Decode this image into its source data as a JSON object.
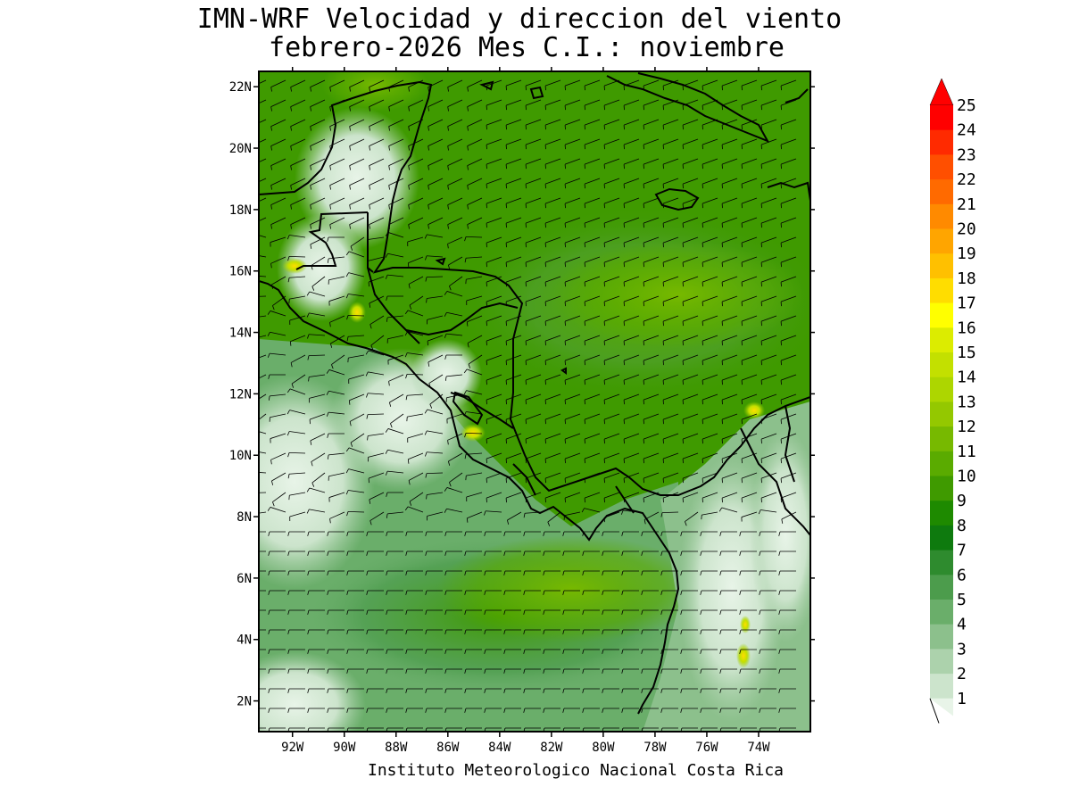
{
  "title_line1": "IMN-WRF Velocidad y direccion del viento",
  "title_line2": "febrero-2026 Mes C.I.: noviembre",
  "footer": "Instituto Meteorologico Nacional Costa Rica",
  "map": {
    "lon_range": [
      -93.3,
      -72.0
    ],
    "lat_range": [
      1.0,
      22.5
    ],
    "lon_ticks": [
      "92W",
      "90W",
      "88W",
      "86W",
      "84W",
      "82W",
      "80W",
      "78W",
      "76W",
      "74W"
    ],
    "lon_tick_values": [
      -92,
      -90,
      -88,
      -86,
      -84,
      -82,
      -80,
      -78,
      -76,
      -74
    ],
    "lat_ticks": [
      "22N",
      "20N",
      "18N",
      "16N",
      "14N",
      "12N",
      "10N",
      "8N",
      "6N",
      "4N",
      "2N"
    ],
    "lat_tick_values": [
      22,
      20,
      18,
      16,
      14,
      12,
      10,
      8,
      6,
      4,
      2
    ]
  },
  "colorbar": {
    "labels": [
      "25",
      "24",
      "23",
      "22",
      "21",
      "20",
      "19",
      "18",
      "17",
      "16",
      "15",
      "14",
      "13",
      "12",
      "11",
      "10",
      "9",
      "8",
      "7",
      "6",
      "5",
      "4",
      "3",
      "2",
      "1"
    ],
    "colors": [
      "#ff0000",
      "#ff2a00",
      "#ff4f00",
      "#ff6a00",
      "#ff8a00",
      "#ffa500",
      "#ffc000",
      "#ffdd00",
      "#ffff00",
      "#dcec00",
      "#c3e000",
      "#add600",
      "#94c800",
      "#77b900",
      "#5aab00",
      "#3f9a00",
      "#1e8a00",
      "#0e7a0e",
      "#2e8b2e",
      "#4c9c4c",
      "#6aae6a",
      "#8cc08c",
      "#acd2ac",
      "#cce4cc",
      "#e8f4e8"
    ],
    "top_arrow_color": "#ff0000"
  }
}
